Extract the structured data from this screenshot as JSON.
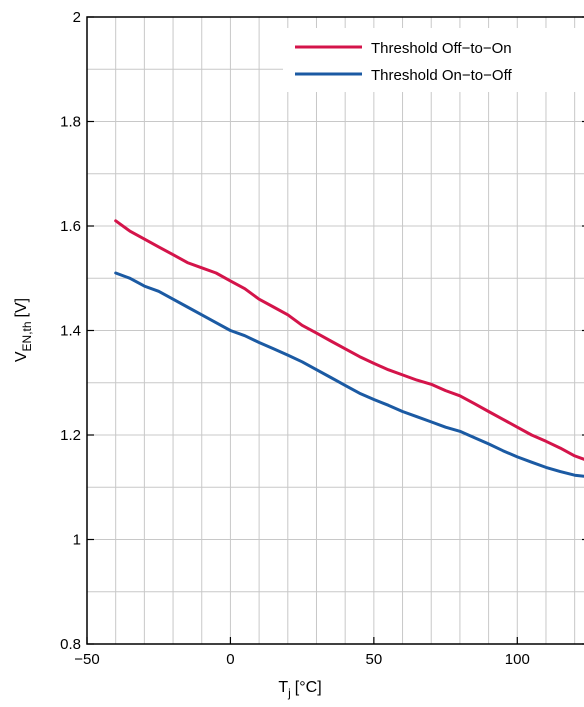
{
  "chart_data": {
    "type": "line",
    "title": "",
    "xlabel": {
      "main": "T",
      "sub": "j",
      "unit": "[°C]"
    },
    "ylabel": {
      "main": "V",
      "sub": "EN,th",
      "unit": "[V]"
    },
    "xlim": [
      -50,
      125
    ],
    "ylim": [
      0.8,
      2
    ],
    "x_ticks": [
      -50,
      0,
      50,
      100
    ],
    "x_tick_labels": [
      "−50",
      "0",
      "50",
      "100"
    ],
    "y_ticks": [
      0.8,
      1,
      1.2,
      1.4,
      1.6,
      1.8,
      2
    ],
    "y_tick_labels": [
      "0.8",
      "1",
      "1.2",
      "1.4",
      "1.6",
      "1.8",
      "2"
    ],
    "grid": true,
    "legend_position": "top-right",
    "series": [
      {
        "name": "Threshold Off−to−On",
        "color": "#d4144a",
        "x": [
          -40,
          -35,
          -30,
          -25,
          -20,
          -15,
          -10,
          -5,
          0,
          5,
          10,
          15,
          20,
          25,
          30,
          35,
          40,
          45,
          50,
          55,
          60,
          65,
          70,
          75,
          80,
          85,
          90,
          95,
          100,
          105,
          110,
          115,
          120,
          125
        ],
        "y": [
          1.61,
          1.59,
          1.575,
          1.56,
          1.545,
          1.53,
          1.52,
          1.51,
          1.495,
          1.48,
          1.46,
          1.445,
          1.43,
          1.41,
          1.395,
          1.38,
          1.365,
          1.35,
          1.337,
          1.325,
          1.315,
          1.305,
          1.297,
          1.285,
          1.275,
          1.26,
          1.245,
          1.23,
          1.215,
          1.2,
          1.188,
          1.175,
          1.16,
          1.15
        ]
      },
      {
        "name": "Threshold On−to−Off",
        "color": "#1b5aa3",
        "x": [
          -40,
          -35,
          -30,
          -25,
          -20,
          -15,
          -10,
          -5,
          0,
          5,
          10,
          15,
          20,
          25,
          30,
          35,
          40,
          45,
          50,
          55,
          60,
          65,
          70,
          75,
          80,
          85,
          90,
          95,
          100,
          105,
          110,
          115,
          120,
          125
        ],
        "y": [
          1.51,
          1.5,
          1.485,
          1.475,
          1.46,
          1.445,
          1.43,
          1.415,
          1.4,
          1.39,
          1.377,
          1.365,
          1.353,
          1.34,
          1.325,
          1.31,
          1.295,
          1.28,
          1.268,
          1.257,
          1.245,
          1.235,
          1.225,
          1.215,
          1.207,
          1.195,
          1.183,
          1.17,
          1.158,
          1.148,
          1.138,
          1.13,
          1.123,
          1.12
        ]
      }
    ]
  }
}
